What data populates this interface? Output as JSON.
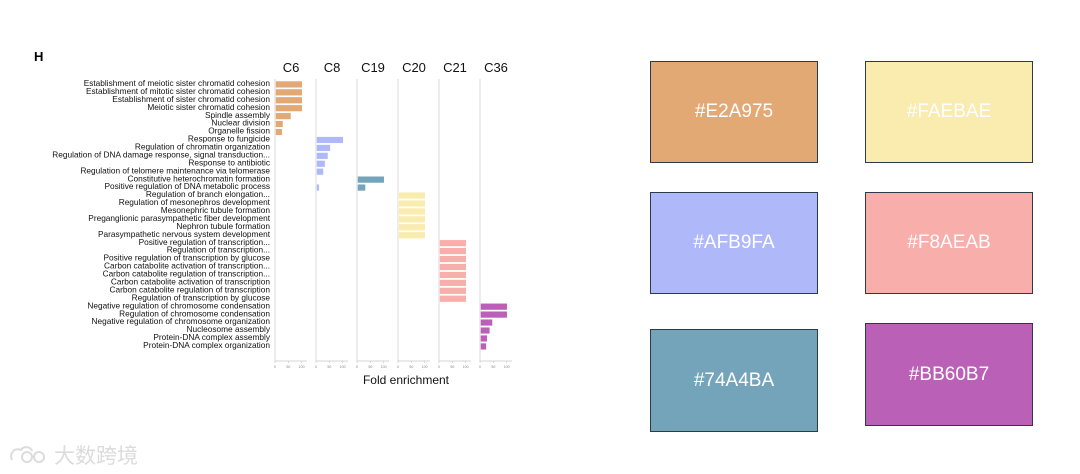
{
  "panel_label": "H",
  "chart_data": {
    "type": "bar",
    "orientation": "horizontal",
    "xlabel": "Fold enrichment",
    "xlim": [
      0,
      120
    ],
    "xticks": [
      "0",
      "50",
      "100"
    ],
    "clusters": [
      {
        "name": "C6",
        "color": "#E2A975",
        "terms": [
          {
            "label": "Establishment of meiotic sister chromatid cohesion",
            "value": 100
          },
          {
            "label": "Establishment of mitotic sister chromatid cohesion",
            "value": 100
          },
          {
            "label": "Establishment of sister chromatid cohesion",
            "value": 100
          },
          {
            "label": "Meiotic sister chromatid cohesion",
            "value": 100
          },
          {
            "label": "Spindle assembly",
            "value": 58
          },
          {
            "label": "Nuclear division",
            "value": 28
          },
          {
            "label": "Organelle fission",
            "value": 25
          }
        ]
      },
      {
        "name": "C8",
        "color": "#AFB9FA",
        "terms": [
          {
            "label": "Response to fungicide",
            "value": 100
          },
          {
            "label": "Regulation of chromatin organization",
            "value": 52
          },
          {
            "label": "Regulation of DNA damage response, signal transduction...",
            "value": 43
          },
          {
            "label": "Response to antibiotic",
            "value": 32
          },
          {
            "label": "Regulation of telomere maintenance via telomerase",
            "value": 26
          },
          {
            "label": "Constitutive heterochromatin formation",
            "value": 0
          },
          {
            "label": "Positive regulation of DNA metabolic process",
            "value": 10
          }
        ]
      },
      {
        "name": "C19",
        "color": "#74A4BA",
        "terms": [
          {
            "label": "Constitutive heterochromatin formation",
            "value": 100
          },
          {
            "label": "Positive regulation of DNA metabolic process",
            "value": 30
          }
        ]
      },
      {
        "name": "C20",
        "color": "#FAEBAE",
        "terms": [
          {
            "label": "Regulation of branch elongation...",
            "value": 100
          },
          {
            "label": "Regulation of mesonephros development",
            "value": 100
          },
          {
            "label": "Mesonephric tubule formation",
            "value": 100
          },
          {
            "label": "Preganglionic parasympathetic fiber development",
            "value": 100
          },
          {
            "label": "Nephron tubule formation",
            "value": 100
          },
          {
            "label": "Parasympathetic nervous system development",
            "value": 100
          }
        ]
      },
      {
        "name": "C21",
        "color": "#F8AEAB",
        "terms": [
          {
            "label": "Positive regulation of transcription...",
            "value": 100
          },
          {
            "label": "Regulation of transcription...",
            "value": 100
          },
          {
            "label": "Positive regulation of transcription by glucose",
            "value": 100
          },
          {
            "label": "Carbon catabolite activation of transcription...",
            "value": 100
          },
          {
            "label": "Carbon catabolite regulation of transcription...",
            "value": 100
          },
          {
            "label": "Carbon catabolite activation of transcription",
            "value": 100
          },
          {
            "label": "Carbon catabolite regulation of transcription",
            "value": 100
          },
          {
            "label": "Regulation of transcription by glucose",
            "value": 100
          }
        ]
      },
      {
        "name": "C36",
        "color": "#BB60B7",
        "terms": [
          {
            "label": "Negative regulation of chromosome condensation",
            "value": 100
          },
          {
            "label": "Regulation of chromosome condensation",
            "value": 100
          },
          {
            "label": "Negative regulation of chromosome organization",
            "value": 45
          },
          {
            "label": "Nucleosome assembly",
            "value": 35
          },
          {
            "label": "Protein-DNA complex assembly",
            "value": 25
          },
          {
            "label": "Protein-DNA complex organization",
            "value": 22
          }
        ]
      }
    ]
  },
  "palette": {
    "swatches": [
      {
        "hex": "#E2A975",
        "label": "#E2A975"
      },
      {
        "hex": "#FAEBAE",
        "label": "#FAEBAE"
      },
      {
        "hex": "#AFB9FA",
        "label": "#AFB9FA"
      },
      {
        "hex": "#F8AEAB",
        "label": "#F8AEAB"
      },
      {
        "hex": "#74A4BA",
        "label": "#74A4BA"
      },
      {
        "hex": "#BB60B7",
        "label": "#BB60B7"
      }
    ]
  },
  "watermark": {
    "text": "大数跨境",
    "icon": "brand-logo-icon"
  }
}
